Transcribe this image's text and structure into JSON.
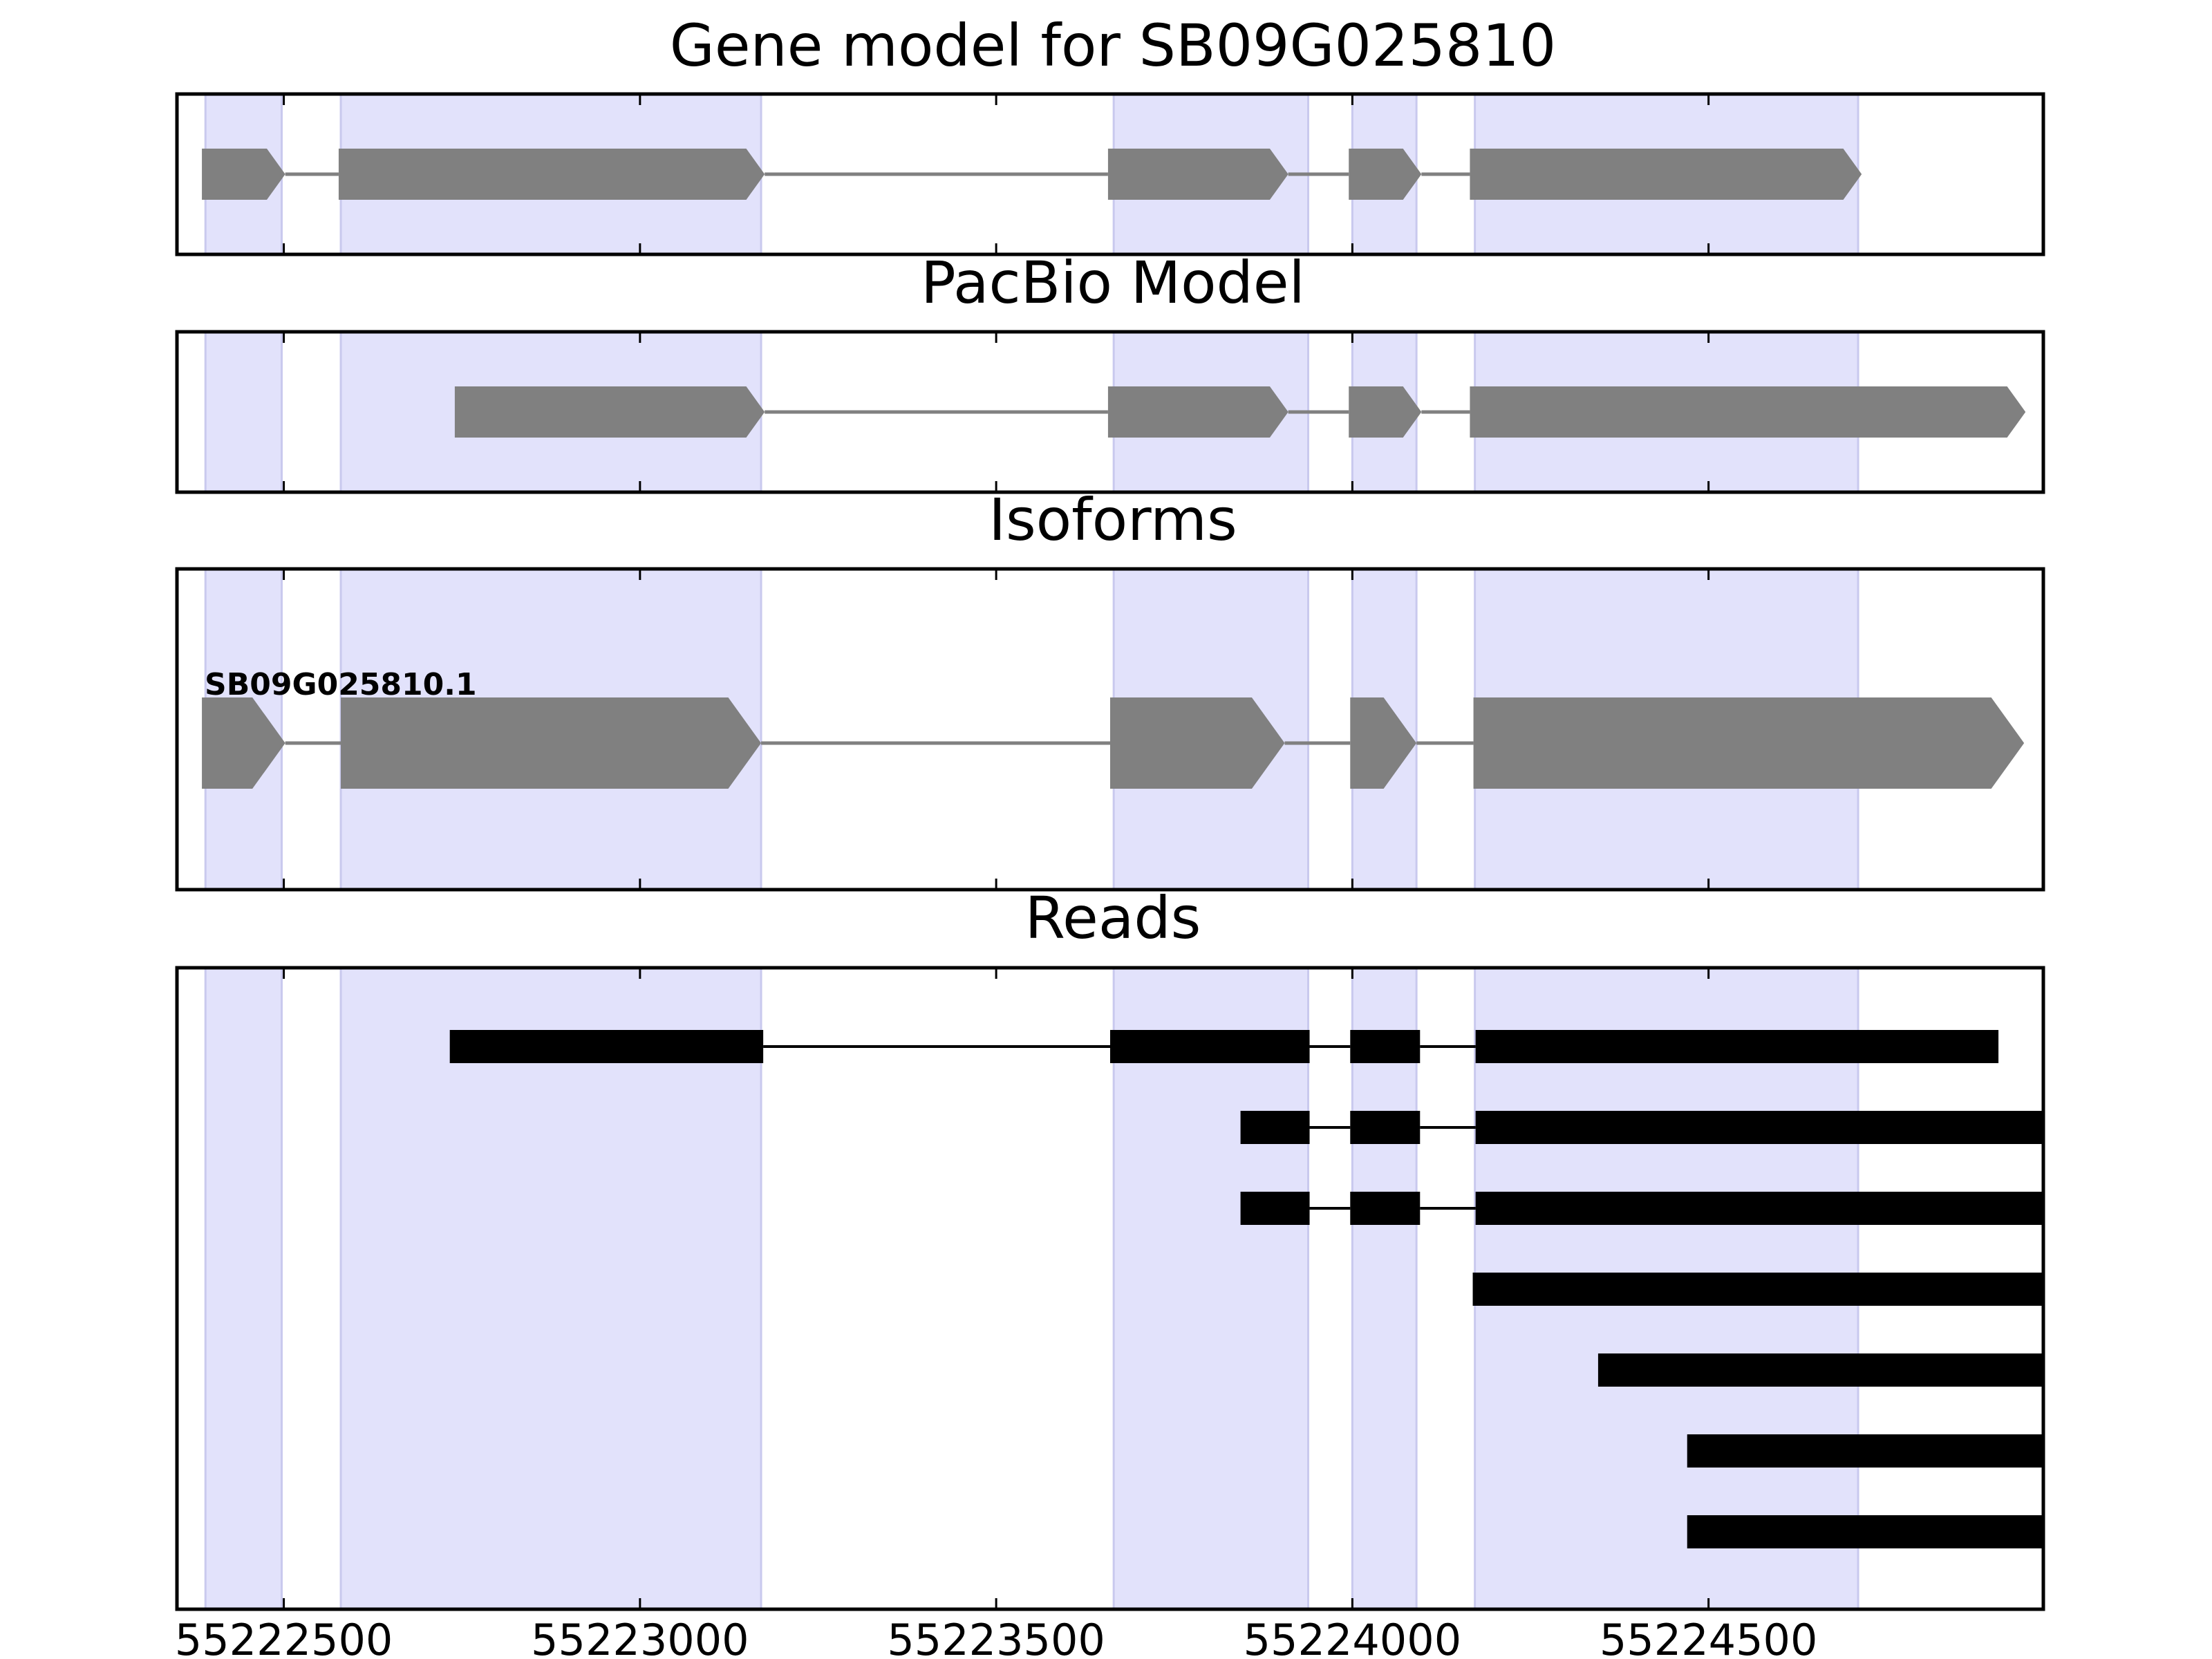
{
  "chart_data": {
    "type": "gene-structure",
    "xlim": [
      55222350,
      55224970
    ],
    "x_ticks": [
      {
        "value": 55222500,
        "label": "55222500"
      },
      {
        "value": 55223000,
        "label": "55223000"
      },
      {
        "value": 55223500,
        "label": "55223500"
      },
      {
        "value": 55224000,
        "label": "55224000"
      },
      {
        "value": 55224500,
        "label": "55224500"
      }
    ],
    "colors": {
      "highlight": "#e2e2fb",
      "highlight_edge": "#c9c9ee",
      "feature": "#808080",
      "read": "#000000",
      "axes": "#000000"
    },
    "highlight_regions": [
      [
        55222390,
        55222497
      ],
      [
        55222580,
        55223170
      ],
      [
        55223665,
        55223938
      ],
      [
        55224000,
        55224090
      ],
      [
        55224172,
        55224710
      ]
    ],
    "panels": [
      {
        "title": "Gene model for SB09G025810",
        "exons": [
          [
            55222385,
            55222502
          ],
          [
            55222577,
            55223175
          ],
          [
            55223657,
            55223910
          ],
          [
            55223995,
            55224097
          ],
          [
            55224165,
            55224715
          ]
        ],
        "isoform_label": ""
      },
      {
        "title": "PacBio Model",
        "exons": [
          [
            55222740,
            55223175
          ],
          [
            55223657,
            55223910
          ],
          [
            55223995,
            55224097
          ],
          [
            55224165,
            55224945
          ]
        ],
        "isoform_label": ""
      },
      {
        "title": "Isoforms",
        "exons": [
          [
            55222385,
            55222502
          ],
          [
            55222580,
            55223170
          ],
          [
            55223660,
            55223905
          ],
          [
            55223997,
            55224090
          ],
          [
            55224170,
            55224943
          ]
        ],
        "isoform_label": "SB09G025810.1"
      },
      {
        "title": "Reads",
        "reads": [
          [
            [
              55222733,
              55223173
            ],
            [
              55223660,
              55223940
            ],
            [
              55223997,
              55224095
            ],
            [
              55224173,
              55224907
            ]
          ],
          [
            [
              55223843,
              55223940
            ],
            [
              55223997,
              55224095
            ],
            [
              55224173,
              55224970
            ]
          ],
          [
            [
              55223843,
              55223940
            ],
            [
              55223997,
              55224095
            ],
            [
              55224173,
              55224970
            ]
          ],
          [
            [
              55224169,
              55224970
            ]
          ],
          [
            [
              55224345,
              55224970
            ]
          ],
          [
            [
              55224470,
              55224970
            ]
          ],
          [
            [
              55224470,
              55224970
            ]
          ]
        ]
      }
    ]
  }
}
